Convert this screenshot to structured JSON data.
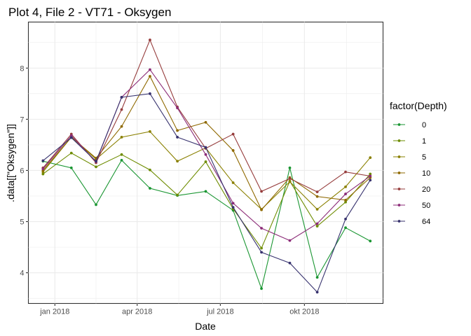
{
  "chart_data": {
    "type": "line",
    "title": "Plot 4, File 2 - VT71  -  Oksygen",
    "xlabel": "Date",
    "ylabel": ".data[[\"Oksygen\"]]",
    "legend_title": "factor(Depth)",
    "legend_position": "right",
    "grid": true,
    "xlim": [
      "2017-12-03",
      "2018-12-26"
    ],
    "ylim": [
      3.4,
      8.9
    ],
    "x_ticks": [
      {
        "date": "2018-01-01",
        "label": "jan 2018"
      },
      {
        "date": "2018-04-01",
        "label": "apr 2018"
      },
      {
        "date": "2018-07-01",
        "label": "jul 2018"
      },
      {
        "date": "2018-10-01",
        "label": "okt 2018"
      }
    ],
    "y_ticks": [
      4,
      5,
      6,
      7,
      8
    ],
    "x": [
      "2017-12-19",
      "2018-01-19",
      "2018-02-15",
      "2018-03-15",
      "2018-04-15",
      "2018-05-15",
      "2018-06-15",
      "2018-07-15",
      "2018-08-15",
      "2018-09-15",
      "2018-10-15",
      "2018-11-15",
      "2018-12-12"
    ],
    "series": [
      {
        "name": "0",
        "color": "#1a9632",
        "values": [
          6.18,
          6.05,
          5.33,
          6.2,
          5.65,
          5.51,
          5.59,
          5.22,
          3.69,
          6.05,
          3.91,
          4.88,
          4.62
        ]
      },
      {
        "name": "1",
        "color": "#6e8c00",
        "values": [
          5.93,
          6.34,
          6.07,
          6.31,
          6.01,
          5.52,
          6.17,
          5.25,
          4.48,
          5.79,
          4.91,
          5.38,
          5.93
        ]
      },
      {
        "name": "5",
        "color": "#8a8000",
        "values": [
          5.97,
          6.65,
          6.22,
          6.65,
          6.76,
          6.18,
          6.44,
          5.76,
          5.24,
          5.78,
          5.24,
          5.68,
          6.25
        ]
      },
      {
        "name": "10",
        "color": "#8f6900",
        "values": [
          6.0,
          6.65,
          6.24,
          6.86,
          7.84,
          6.78,
          6.94,
          6.39,
          5.23,
          5.86,
          5.49,
          5.42,
          5.86
        ]
      },
      {
        "name": "20",
        "color": "#963c3c",
        "values": [
          6.05,
          6.71,
          6.15,
          7.19,
          8.55,
          7.24,
          6.43,
          6.71,
          5.59,
          5.84,
          5.58,
          5.97,
          5.89
        ]
      },
      {
        "name": "50",
        "color": "#8c2c78",
        "values": [
          6.03,
          6.68,
          6.17,
          7.43,
          7.97,
          7.22,
          6.31,
          5.36,
          4.87,
          4.63,
          4.96,
          5.54,
          5.89
        ]
      },
      {
        "name": "64",
        "color": "#37326e",
        "values": [
          6.19,
          6.64,
          6.18,
          7.43,
          7.5,
          6.65,
          6.45,
          5.28,
          4.4,
          4.19,
          3.62,
          5.05,
          5.81
        ]
      }
    ]
  }
}
